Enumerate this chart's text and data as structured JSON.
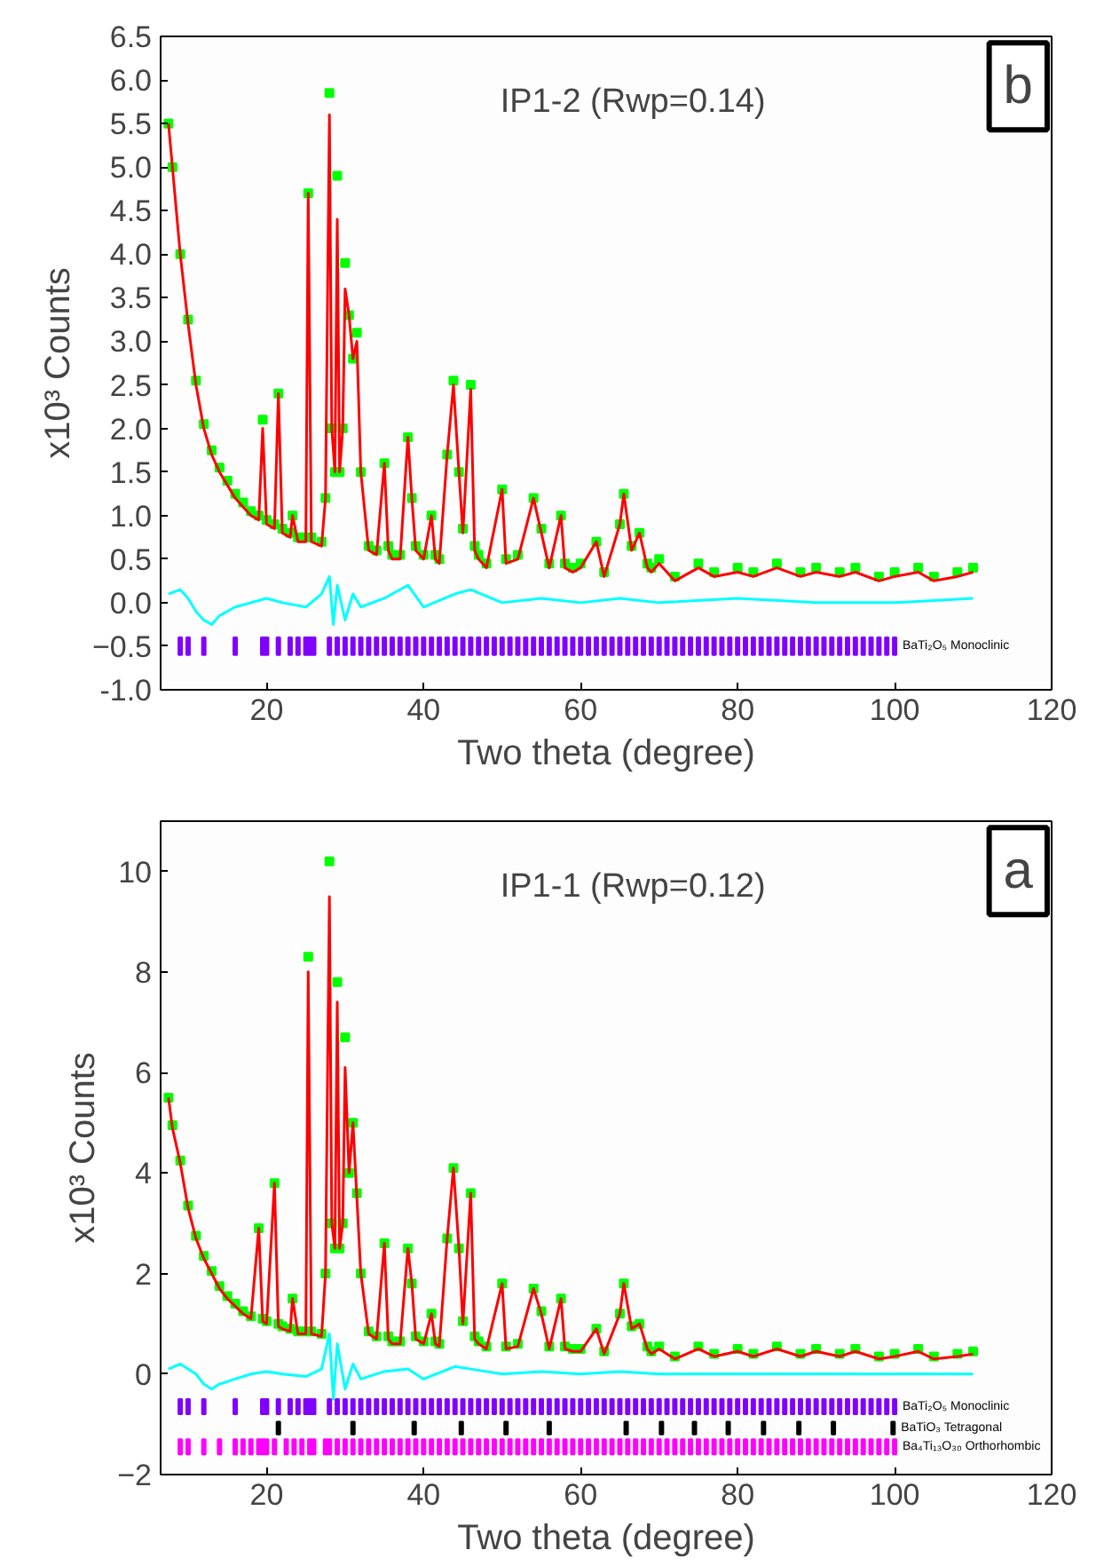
{
  "chart_data": [
    {
      "type": "line",
      "title": "IP1-2 (Rwp=0.14)",
      "annotations": [
        "b"
      ],
      "xlabel": "Two theta (degree)",
      "ylabel": "x10³ Counts",
      "xlim": [
        6.5,
        120
      ],
      "xticks": [
        20,
        40,
        60,
        80,
        100,
        120
      ],
      "ylim": [
        -1.0,
        6.5
      ],
      "yticks": [
        {
          "value": -1,
          "label": "-1.0"
        },
        -0.5,
        {
          "value": 0,
          "label": "0.0"
        },
        0.5,
        {
          "value": 1,
          "label": "1.0"
        },
        1.5,
        {
          "value": 2,
          "label": "2.0"
        },
        2.5,
        {
          "value": 3,
          "label": "3.0"
        },
        3.5,
        {
          "value": 4,
          "label": "4.0"
        },
        4.5,
        {
          "value": 5,
          "label": "5.0"
        },
        5.5,
        {
          "value": 6,
          "label": "6.0"
        },
        6.5
      ],
      "grid": false,
      "x": [
        7.5,
        8,
        9,
        10,
        11,
        12,
        13,
        14,
        15,
        16,
        17,
        18,
        19,
        19.5,
        20,
        21,
        21.5,
        22,
        23,
        23.3,
        24,
        25,
        25.3,
        25.7,
        27,
        27.5,
        28,
        28.3,
        28.7,
        29,
        29.3,
        29.7,
        30,
        30.5,
        31,
        31.5,
        32,
        33,
        34,
        35,
        35.5,
        36,
        37,
        38,
        38.5,
        39,
        40,
        41,
        41.5,
        42,
        43,
        43.8,
        44.5,
        45,
        46,
        46.5,
        47,
        48,
        50,
        50.5,
        52,
        54,
        55,
        56,
        57.5,
        58,
        59,
        60,
        62,
        63,
        65,
        65.5,
        66.5,
        67.5,
        68.5,
        69,
        70,
        72,
        75,
        77,
        80,
        82,
        85,
        88,
        90,
        93,
        95,
        98,
        100,
        103,
        105,
        108,
        110
      ],
      "series": [
        {
          "type": "scatter",
          "marker": "square",
          "color": "#00ff00",
          "values": [
            5.5,
            5.0,
            4.0,
            3.25,
            2.55,
            2.05,
            1.75,
            1.55,
            1.4,
            1.25,
            1.15,
            1.05,
            1.0,
            2.1,
            0.95,
            0.9,
            2.4,
            0.85,
            0.8,
            1.0,
            0.75,
            0.75,
            4.7,
            0.75,
            0.7,
            1.2,
            5.85,
            2.0,
            1.5,
            4.9,
            1.5,
            2.0,
            3.9,
            3.3,
            2.8,
            3.1,
            1.5,
            0.65,
            0.6,
            1.6,
            0.65,
            0.55,
            0.55,
            1.9,
            1.2,
            0.65,
            0.55,
            1.0,
            0.55,
            0.5,
            1.7,
            2.55,
            1.5,
            0.85,
            2.5,
            0.65,
            0.55,
            0.45,
            1.3,
            0.5,
            0.55,
            1.2,
            0.85,
            0.45,
            1.0,
            0.45,
            0.4,
            0.45,
            0.7,
            0.35,
            0.9,
            1.25,
            0.65,
            0.8,
            0.45,
            0.4,
            0.5,
            0.3,
            0.45,
            0.35,
            0.4,
            0.35,
            0.45,
            0.35,
            0.4,
            0.35,
            0.4,
            0.3,
            0.35,
            0.4,
            0.3,
            0.35,
            0.4
          ]
        },
        {
          "color": "#ff0000",
          "values": [
            5.5,
            5.0,
            4.0,
            3.2,
            2.5,
            2.0,
            1.7,
            1.5,
            1.35,
            1.2,
            1.1,
            1.0,
            0.95,
            2.0,
            0.9,
            0.85,
            2.4,
            0.8,
            0.75,
            1.0,
            0.7,
            0.7,
            4.7,
            0.7,
            0.65,
            1.2,
            5.6,
            2.0,
            1.5,
            4.4,
            1.5,
            2.0,
            3.6,
            3.3,
            2.8,
            3.0,
            1.5,
            0.6,
            0.55,
            1.6,
            0.6,
            0.5,
            0.5,
            1.9,
            1.2,
            0.6,
            0.5,
            1.0,
            0.5,
            0.45,
            1.7,
            2.5,
            1.5,
            0.8,
            2.45,
            0.6,
            0.5,
            0.4,
            1.3,
            0.45,
            0.5,
            1.2,
            0.8,
            0.4,
            1.0,
            0.4,
            0.35,
            0.4,
            0.7,
            0.3,
            0.9,
            1.25,
            0.6,
            0.8,
            0.4,
            0.35,
            0.45,
            0.25,
            0.4,
            0.3,
            0.35,
            0.3,
            0.4,
            0.3,
            0.35,
            0.3,
            0.35,
            0.25,
            0.3,
            0.35,
            0.25,
            0.3,
            0.35
          ]
        },
        {
          "color": "#00ffff",
          "x": [
            7.5,
            9,
            10,
            11,
            12,
            13,
            14,
            16,
            18,
            20,
            22,
            25,
            27,
            28,
            28.5,
            29,
            30,
            31,
            32,
            35,
            38,
            40,
            44,
            46,
            50,
            55,
            60,
            65,
            70,
            80,
            90,
            100,
            110
          ],
          "values": [
            0.1,
            0.15,
            0.05,
            -0.1,
            -0.2,
            -0.25,
            -0.15,
            -0.05,
            0.0,
            0.05,
            0.0,
            -0.05,
            0.1,
            0.3,
            -0.25,
            0.2,
            -0.2,
            0.1,
            -0.05,
            0.05,
            0.2,
            -0.05,
            0.1,
            0.15,
            0.0,
            0.05,
            0.0,
            0.05,
            0.0,
            0.05,
            0.0,
            0.0,
            0.05
          ]
        },
        {
          "type": "bar",
          "name": "BaTi₂O₅ Monoclinic",
          "color": "#8000ff",
          "x": [
            9,
            10,
            12,
            16,
            19.5,
            20,
            21.5,
            23,
            24,
            25,
            25.5,
            26,
            28,
            29,
            30,
            31,
            32,
            33,
            34,
            35,
            36,
            37,
            38,
            39,
            40,
            41,
            42,
            43,
            44,
            45,
            46,
            47,
            48,
            49,
            50,
            51,
            52,
            53,
            54,
            55,
            56,
            57,
            58,
            59,
            60,
            61,
            62,
            63,
            64,
            65,
            66,
            67,
            68,
            69,
            70,
            71,
            72,
            73,
            74,
            75,
            76,
            77,
            78,
            79,
            80,
            81,
            82,
            83,
            84,
            85,
            86,
            87,
            88,
            89,
            90,
            91,
            92,
            93,
            94,
            95,
            96,
            97,
            98,
            99,
            100
          ],
          "base": [
            -0.6,
            -0.6,
            -0.6,
            -0.6,
            -0.6,
            -0.6,
            -0.6,
            -0.6,
            -0.6,
            -0.6,
            -0.6,
            -0.6,
            -0.6,
            -0.6,
            -0.6,
            -0.6,
            -0.6,
            -0.6,
            -0.6,
            -0.6,
            -0.6,
            -0.6,
            -0.6,
            -0.6,
            -0.6,
            -0.6,
            -0.6,
            -0.6,
            -0.6,
            -0.6,
            -0.6,
            -0.6,
            -0.6,
            -0.6,
            -0.6,
            -0.6,
            -0.6,
            -0.6,
            -0.6,
            -0.6,
            -0.6,
            -0.6,
            -0.6,
            -0.6,
            -0.6,
            -0.6,
            -0.6,
            -0.6,
            -0.6,
            -0.6,
            -0.6,
            -0.6,
            -0.6,
            -0.6,
            -0.6,
            -0.6,
            -0.6,
            -0.6,
            -0.6,
            -0.6,
            -0.6,
            -0.6,
            -0.6,
            -0.6,
            -0.6,
            -0.6,
            -0.6,
            -0.6,
            -0.6,
            -0.6,
            -0.6,
            -0.6,
            -0.6,
            -0.6,
            -0.6,
            -0.6,
            -0.6,
            -0.6,
            -0.6,
            -0.6,
            -0.6,
            -0.6,
            -0.6,
            -0.6,
            -0.6
          ],
          "values": [
            0.2,
            0.2,
            0.2,
            0.2,
            0.2,
            0.2,
            0.2,
            0.2,
            0.2,
            0.2,
            0.2,
            0.2,
            0.2,
            0.2,
            0.2,
            0.2,
            0.2,
            0.2,
            0.2,
            0.2,
            0.2,
            0.2,
            0.2,
            0.2,
            0.2,
            0.2,
            0.2,
            0.2,
            0.2,
            0.2,
            0.2,
            0.2,
            0.2,
            0.2,
            0.2,
            0.2,
            0.2,
            0.2,
            0.2,
            0.2,
            0.2,
            0.2,
            0.2,
            0.2,
            0.2,
            0.2,
            0.2,
            0.2,
            0.2,
            0.2,
            0.2,
            0.2,
            0.2,
            0.2,
            0.2,
            0.2,
            0.2,
            0.2,
            0.2,
            0.2,
            0.2,
            0.2,
            0.2,
            0.2,
            0.2,
            0.2,
            0.2,
            0.2,
            0.2,
            0.2,
            0.2,
            0.2,
            0.2,
            0.2,
            0.2,
            0.2,
            0.2,
            0.2,
            0.2,
            0.2,
            0.2,
            0.2,
            0.2,
            0.2,
            0.2
          ]
        }
      ]
    },
    {
      "type": "line",
      "title": "IP1-1 (Rwp=0.12)",
      "annotations": [
        "a"
      ],
      "xlabel": "Two theta (degree)",
      "ylabel": "x10³ Counts",
      "xlim": [
        6.5,
        120
      ],
      "xticks": [
        20,
        40,
        60,
        80,
        100,
        120
      ],
      "ylim": [
        -2,
        11
      ],
      "yticks": [
        -2,
        0,
        2,
        4,
        6,
        8,
        10
      ],
      "grid": false,
      "x": [
        7.5,
        8,
        9,
        10,
        11,
        12,
        13,
        14,
        15,
        16,
        17,
        18,
        19,
        19.5,
        20,
        21,
        21.5,
        22,
        23,
        23.3,
        24,
        25,
        25.3,
        25.7,
        27,
        27.5,
        28,
        28.3,
        28.7,
        29,
        29.3,
        29.7,
        30,
        30.5,
        31,
        31.5,
        32,
        33,
        34,
        35,
        35.5,
        36,
        37,
        38,
        38.5,
        39,
        40,
        41,
        41.5,
        42,
        43,
        43.8,
        44.5,
        45,
        46,
        46.5,
        47,
        48,
        50,
        50.5,
        52,
        54,
        55,
        56,
        57.5,
        58,
        59,
        60,
        62,
        63,
        65,
        65.5,
        66.5,
        67.5,
        68.5,
        69,
        70,
        72,
        75,
        77,
        80,
        82,
        85,
        88,
        90,
        93,
        95,
        98,
        100,
        103,
        105,
        108,
        110
      ],
      "series": [
        {
          "type": "scatter",
          "marker": "square",
          "color": "#00ff00",
          "values": [
            5.5,
            4.95,
            4.25,
            3.35,
            2.75,
            2.35,
            2.05,
            1.75,
            1.55,
            1.4,
            1.25,
            1.15,
            2.9,
            1.1,
            1.05,
            3.8,
            1.0,
            0.95,
            0.9,
            1.5,
            0.85,
            0.85,
            8.3,
            0.85,
            0.8,
            2.0,
            10.2,
            3.0,
            2.5,
            7.8,
            2.5,
            3.0,
            6.7,
            4.0,
            5.0,
            3.6,
            2.0,
            0.85,
            0.75,
            2.6,
            0.75,
            0.65,
            0.65,
            2.5,
            1.8,
            0.75,
            0.65,
            1.2,
            0.65,
            0.6,
            2.7,
            4.1,
            2.5,
            1.05,
            3.6,
            0.75,
            0.65,
            0.55,
            1.8,
            0.55,
            0.6,
            1.7,
            1.25,
            0.55,
            1.5,
            0.55,
            0.5,
            0.5,
            0.9,
            0.45,
            1.2,
            1.8,
            0.95,
            1.0,
            0.55,
            0.45,
            0.55,
            0.35,
            0.55,
            0.4,
            0.5,
            0.4,
            0.55,
            0.4,
            0.5,
            0.4,
            0.5,
            0.35,
            0.4,
            0.5,
            0.35,
            0.4,
            0.45
          ]
        },
        {
          "color": "#ff0000",
          "values": [
            5.5,
            4.9,
            4.2,
            3.3,
            2.7,
            2.3,
            2.0,
            1.7,
            1.5,
            1.35,
            1.2,
            1.1,
            2.9,
            1.05,
            1.0,
            3.8,
            0.95,
            0.9,
            0.85,
            1.5,
            0.8,
            0.8,
            8.0,
            0.8,
            0.75,
            2.0,
            9.5,
            3.0,
            2.5,
            7.4,
            2.5,
            3.0,
            6.1,
            4.0,
            5.0,
            3.5,
            2.0,
            0.8,
            0.7,
            2.6,
            0.7,
            0.6,
            0.6,
            2.5,
            1.8,
            0.7,
            0.6,
            1.2,
            0.6,
            0.55,
            2.7,
            4.1,
            2.5,
            1.0,
            3.6,
            0.7,
            0.6,
            0.5,
            1.8,
            0.5,
            0.55,
            1.7,
            1.2,
            0.5,
            1.5,
            0.5,
            0.45,
            0.45,
            0.9,
            0.4,
            1.2,
            1.8,
            0.9,
            1.0,
            0.5,
            0.4,
            0.5,
            0.3,
            0.5,
            0.35,
            0.45,
            0.35,
            0.5,
            0.35,
            0.45,
            0.35,
            0.45,
            0.3,
            0.35,
            0.45,
            0.3,
            0.35,
            0.4
          ]
        },
        {
          "color": "#00ffff",
          "x": [
            7.5,
            9,
            10,
            11,
            12,
            13,
            14,
            16,
            18,
            20,
            22,
            25,
            27,
            28,
            28.5,
            29,
            30,
            31,
            32,
            35,
            38,
            40,
            44,
            46,
            50,
            55,
            60,
            65,
            70,
            80,
            90,
            100,
            110
          ],
          "values": [
            0.1,
            0.2,
            0.1,
            0.0,
            -0.2,
            -0.3,
            -0.2,
            -0.1,
            0.0,
            0.05,
            0.0,
            -0.05,
            0.1,
            0.8,
            -0.5,
            0.6,
            -0.3,
            0.2,
            -0.1,
            0.05,
            0.1,
            -0.1,
            0.15,
            0.1,
            0.0,
            0.05,
            0.0,
            0.05,
            0.0,
            0.0,
            0.0,
            0.0,
            0.0
          ]
        },
        {
          "type": "bar",
          "name": "BaTi₂O₅ Monoclinic",
          "color": "#8000ff",
          "x": [
            9,
            10,
            12,
            16,
            19.5,
            20,
            21.5,
            23,
            24,
            25,
            25.5,
            26,
            28,
            29,
            30,
            31,
            32,
            33,
            34,
            35,
            36,
            37,
            38,
            39,
            40,
            41,
            42,
            43,
            44,
            45,
            46,
            47,
            48,
            49,
            50,
            51,
            52,
            53,
            54,
            55,
            56,
            57,
            58,
            59,
            60,
            61,
            62,
            63,
            64,
            65,
            66,
            67,
            68,
            69,
            70,
            71,
            72,
            73,
            74,
            75,
            76,
            77,
            78,
            79,
            80,
            81,
            82,
            83,
            84,
            85,
            86,
            87,
            88,
            89,
            90,
            91,
            92,
            93,
            94,
            95,
            96,
            97,
            98,
            99,
            100
          ],
          "base": [
            -0.8,
            -0.8,
            -0.8,
            -0.8,
            -0.8,
            -0.8,
            -0.8,
            -0.8,
            -0.8,
            -0.8,
            -0.8,
            -0.8,
            -0.8,
            -0.8,
            -0.8,
            -0.8,
            -0.8,
            -0.8,
            -0.8,
            -0.8,
            -0.8,
            -0.8,
            -0.8,
            -0.8,
            -0.8,
            -0.8,
            -0.8,
            -0.8,
            -0.8,
            -0.8,
            -0.8,
            -0.8,
            -0.8,
            -0.8,
            -0.8,
            -0.8,
            -0.8,
            -0.8,
            -0.8,
            -0.8,
            -0.8,
            -0.8,
            -0.8,
            -0.8,
            -0.8,
            -0.8,
            -0.8,
            -0.8,
            -0.8,
            -0.8,
            -0.8,
            -0.8,
            -0.8,
            -0.8,
            -0.8,
            -0.8,
            -0.8,
            -0.8,
            -0.8,
            -0.8,
            -0.8,
            -0.8,
            -0.8,
            -0.8,
            -0.8,
            -0.8,
            -0.8,
            -0.8,
            -0.8,
            -0.8,
            -0.8,
            -0.8,
            -0.8,
            -0.8,
            -0.8,
            -0.8,
            -0.8,
            -0.8,
            -0.8,
            -0.8,
            -0.8,
            -0.8,
            -0.8,
            -0.8,
            -0.8
          ],
          "values": [
            0.3,
            0.3,
            0.3,
            0.3,
            0.3,
            0.3,
            0.3,
            0.3,
            0.3,
            0.3,
            0.3,
            0.3,
            0.3,
            0.3,
            0.3,
            0.3,
            0.3,
            0.3,
            0.3,
            0.3,
            0.3,
            0.3,
            0.3,
            0.3,
            0.3,
            0.3,
            0.3,
            0.3,
            0.3,
            0.3,
            0.3,
            0.3,
            0.3,
            0.3,
            0.3,
            0.3,
            0.3,
            0.3,
            0.3,
            0.3,
            0.3,
            0.3,
            0.3,
            0.3,
            0.3,
            0.3,
            0.3,
            0.3,
            0.3,
            0.3,
            0.3,
            0.3,
            0.3,
            0.3,
            0.3,
            0.3,
            0.3,
            0.3,
            0.3,
            0.3,
            0.3,
            0.3,
            0.3,
            0.3,
            0.3,
            0.3,
            0.3,
            0.3,
            0.3,
            0.3,
            0.3,
            0.3,
            0.3,
            0.3,
            0.3,
            0.3,
            0.3,
            0.3,
            0.3,
            0.3,
            0.3,
            0.3,
            0.3,
            0.3,
            0.3
          ]
        },
        {
          "type": "bar",
          "name": "BaTiO₃ Tetragonal",
          "color": "#000000",
          "x": [
            21.5,
            31,
            38.8,
            44.8,
            50.5,
            56,
            65.8,
            70.3,
            74.5,
            78.8,
            83.3,
            87.8,
            92.2,
            99.8
          ],
          "base": [
            -1.2,
            -1.2,
            -1.2,
            -1.2,
            -1.2,
            -1.2,
            -1.2,
            -1.2,
            -1.2,
            -1.2,
            -1.2,
            -1.2,
            -1.2,
            -1.2
          ],
          "values": [
            0.25,
            0.25,
            0.25,
            0.25,
            0.25,
            0.25,
            0.25,
            0.25,
            0.25,
            0.25,
            0.25,
            0.25,
            0.25,
            0.25
          ]
        },
        {
          "type": "bar",
          "name": "Ba₄Ti₁₃O₃₀ Orthorhombic",
          "color": "#ff00ff",
          "x": [
            9,
            10,
            12,
            14,
            16,
            17,
            18,
            19,
            19.5,
            20,
            21,
            22.5,
            23.5,
            24.5,
            25.5,
            26,
            27.5,
            28,
            29,
            30,
            31,
            32,
            33,
            34,
            35,
            36,
            37,
            38,
            39,
            40,
            41,
            42,
            43,
            44,
            45,
            46,
            47,
            48,
            49,
            50,
            51,
            52,
            53,
            54,
            55,
            56,
            57,
            58,
            59,
            60,
            61,
            62,
            63,
            64,
            65,
            66,
            67,
            68,
            69,
            70,
            71,
            72,
            73,
            74,
            75,
            76,
            77,
            78,
            79,
            80,
            81,
            82,
            83,
            84,
            85,
            86,
            87,
            88,
            89,
            90,
            91,
            92,
            93,
            94,
            95,
            96,
            97,
            98,
            99,
            100
          ],
          "base": [
            -1.6,
            -1.6,
            -1.6,
            -1.6,
            -1.6,
            -1.6,
            -1.6,
            -1.6,
            -1.6,
            -1.6,
            -1.6,
            -1.6,
            -1.6,
            -1.6,
            -1.6,
            -1.6,
            -1.6,
            -1.6,
            -1.6,
            -1.6,
            -1.6,
            -1.6,
            -1.6,
            -1.6,
            -1.6,
            -1.6,
            -1.6,
            -1.6,
            -1.6,
            -1.6,
            -1.6,
            -1.6,
            -1.6,
            -1.6,
            -1.6,
            -1.6,
            -1.6,
            -1.6,
            -1.6,
            -1.6,
            -1.6,
            -1.6,
            -1.6,
            -1.6,
            -1.6,
            -1.6,
            -1.6,
            -1.6,
            -1.6,
            -1.6,
            -1.6,
            -1.6,
            -1.6,
            -1.6,
            -1.6,
            -1.6,
            -1.6,
            -1.6,
            -1.6,
            -1.6,
            -1.6,
            -1.6,
            -1.6,
            -1.6,
            -1.6,
            -1.6,
            -1.6,
            -1.6,
            -1.6,
            -1.6,
            -1.6,
            -1.6,
            -1.6,
            -1.6,
            -1.6,
            -1.6,
            -1.6,
            -1.6,
            -1.6,
            -1.6,
            -1.6,
            -1.6,
            -1.6,
            -1.6,
            -1.6,
            -1.6,
            -1.6,
            -1.6,
            -1.6,
            -1.6
          ],
          "values": [
            0.3,
            0.3,
            0.3,
            0.3,
            0.3,
            0.3,
            0.3,
            0.3,
            0.3,
            0.3,
            0.3,
            0.3,
            0.3,
            0.3,
            0.3,
            0.3,
            0.3,
            0.3,
            0.3,
            0.3,
            0.3,
            0.3,
            0.3,
            0.3,
            0.3,
            0.3,
            0.3,
            0.3,
            0.3,
            0.3,
            0.3,
            0.3,
            0.3,
            0.3,
            0.3,
            0.3,
            0.3,
            0.3,
            0.3,
            0.3,
            0.3,
            0.3,
            0.3,
            0.3,
            0.3,
            0.3,
            0.3,
            0.3,
            0.3,
            0.3,
            0.3,
            0.3,
            0.3,
            0.3,
            0.3,
            0.3,
            0.3,
            0.3,
            0.3,
            0.3,
            0.3,
            0.3,
            0.3,
            0.3,
            0.3,
            0.3,
            0.3,
            0.3,
            0.3,
            0.3,
            0.3,
            0.3,
            0.3,
            0.3,
            0.3,
            0.3,
            0.3,
            0.3,
            0.3,
            0.3,
            0.3,
            0.3,
            0.3,
            0.3,
            0.3,
            0.3,
            0.3,
            0.3,
            0.3,
            0.3
          ]
        }
      ]
    }
  ]
}
